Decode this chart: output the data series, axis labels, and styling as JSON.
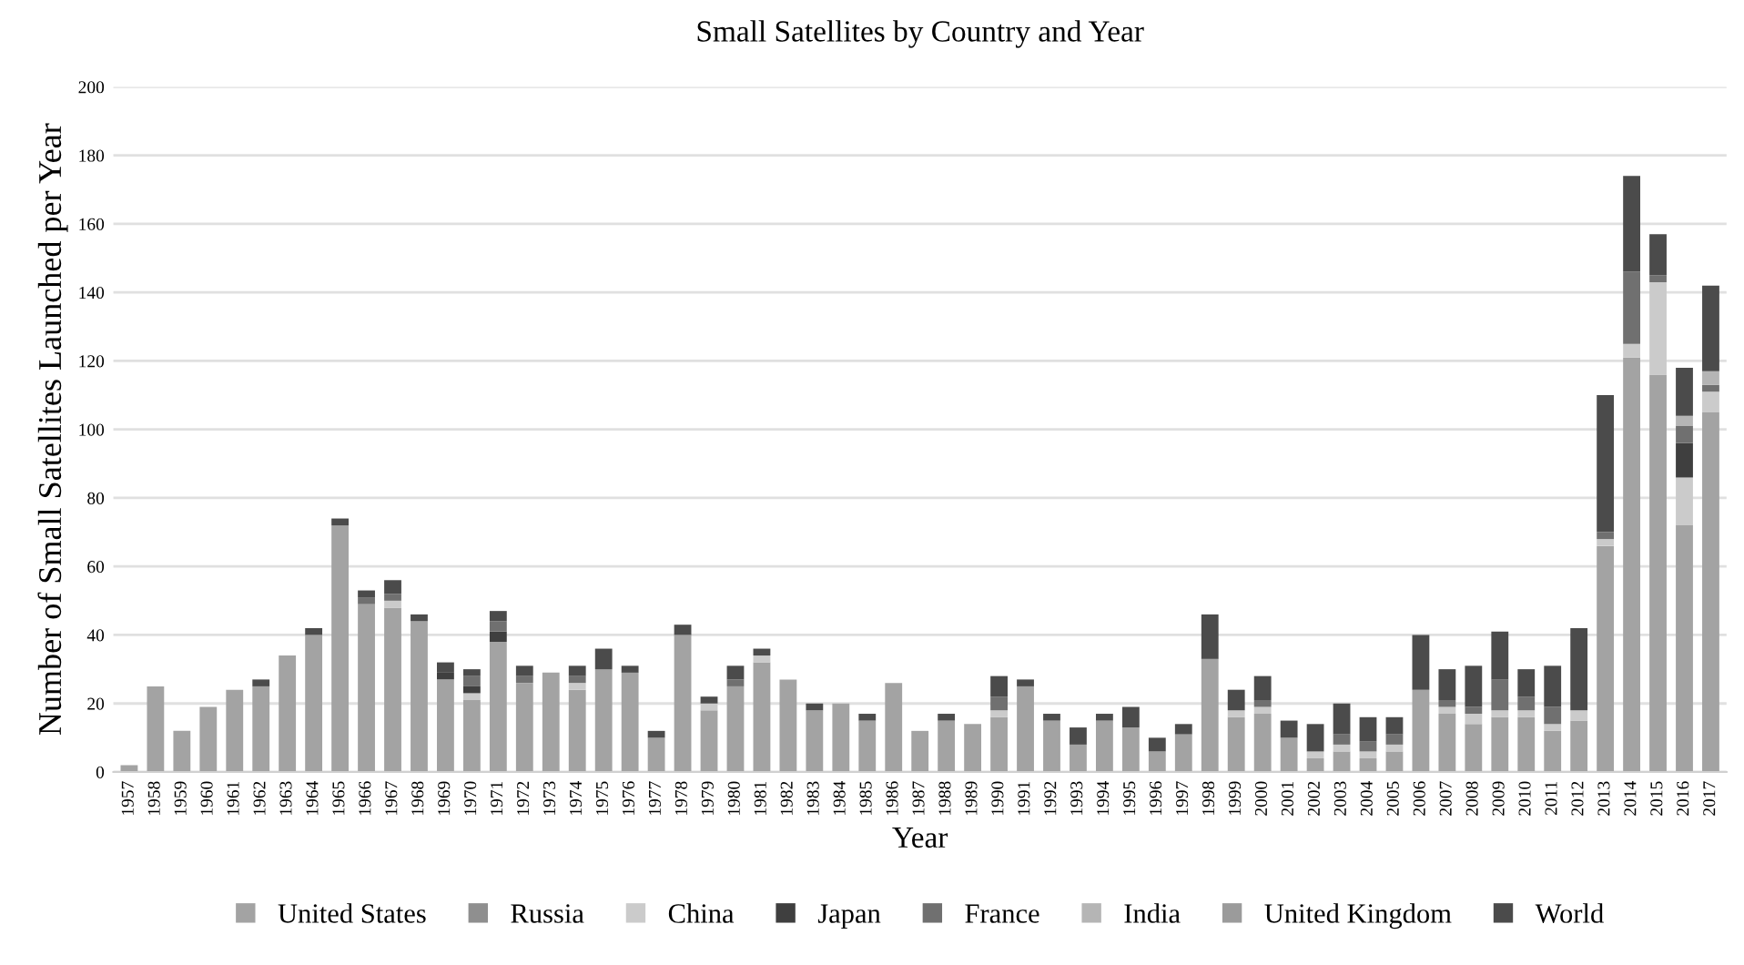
{
  "chart_data": {
    "type": "bar",
    "stacked": true,
    "title": "Small Satellites by Country and Year",
    "xlabel": "Year",
    "ylabel": "Number of Small Satellites Launched per Year",
    "categories": [
      "1957",
      "1958",
      "1959",
      "1960",
      "1961",
      "1962",
      "1963",
      "1964",
      "1965",
      "1966",
      "1967",
      "1968",
      "1969",
      "1970",
      "1971",
      "1972",
      "1973",
      "1974",
      "1975",
      "1976",
      "1977",
      "1978",
      "1979",
      "1980",
      "1981",
      "1982",
      "1983",
      "1984",
      "1985",
      "1986",
      "1987",
      "1988",
      "1989",
      "1990",
      "1991",
      "1992",
      "1993",
      "1994",
      "1995",
      "1996",
      "1997",
      "1998",
      "1999",
      "2000",
      "2001",
      "2002",
      "2003",
      "2004",
      "2005",
      "2006",
      "2007",
      "2008",
      "2009",
      "2010",
      "2011",
      "2012",
      "2013",
      "2014",
      "2015",
      "2016",
      "2017"
    ],
    "series": [
      {
        "name": "United States",
        "color": "#a3a3a3",
        "values": [
          2,
          25,
          12,
          19,
          24,
          25,
          34,
          40,
          72,
          49,
          48,
          44,
          27,
          21,
          38,
          26,
          29,
          24,
          30,
          29,
          10,
          40,
          18,
          25,
          32,
          27,
          18,
          20,
          15,
          26,
          12,
          15,
          14,
          16,
          25,
          15,
          8,
          15,
          13,
          6,
          11,
          33,
          16,
          17,
          10,
          4,
          6,
          4,
          6,
          24,
          17,
          14,
          16,
          16,
          12,
          15,
          66,
          121,
          116,
          72,
          105
        ]
      },
      {
        "name": "Russia",
        "color": "#8f8f8f",
        "values": [
          0,
          0,
          0,
          0,
          0,
          0,
          0,
          0,
          0,
          0,
          0,
          0,
          0,
          0,
          0,
          0,
          0,
          0,
          0,
          0,
          0,
          0,
          0,
          0,
          0,
          0,
          0,
          0,
          0,
          0,
          0,
          0,
          0,
          0,
          0,
          0,
          0,
          0,
          0,
          0,
          0,
          0,
          0,
          0,
          0,
          0,
          0,
          0,
          0,
          0,
          0,
          0,
          0,
          0,
          0,
          0,
          0,
          0,
          0,
          0,
          0
        ]
      },
      {
        "name": "China",
        "color": "#cbcbcb",
        "values": [
          0,
          0,
          0,
          0,
          0,
          0,
          0,
          0,
          0,
          0,
          2,
          0,
          0,
          2,
          0,
          0,
          0,
          2,
          0,
          0,
          0,
          0,
          2,
          0,
          2,
          0,
          0,
          0,
          0,
          0,
          0,
          0,
          0,
          2,
          0,
          0,
          0,
          0,
          0,
          0,
          0,
          0,
          2,
          2,
          0,
          2,
          2,
          2,
          2,
          0,
          2,
          3,
          2,
          2,
          2,
          3,
          2,
          4,
          27,
          14,
          6
        ]
      },
      {
        "name": "Japan",
        "color": "#3f3f3f",
        "values": [
          0,
          0,
          0,
          0,
          0,
          0,
          0,
          0,
          0,
          0,
          0,
          0,
          2,
          2,
          3,
          0,
          0,
          0,
          0,
          0,
          0,
          0,
          0,
          0,
          0,
          0,
          0,
          0,
          0,
          0,
          0,
          0,
          0,
          0,
          0,
          0,
          0,
          0,
          0,
          0,
          0,
          0,
          0,
          0,
          0,
          0,
          0,
          0,
          0,
          0,
          0,
          0,
          0,
          0,
          0,
          0,
          0,
          0,
          0,
          10,
          0
        ]
      },
      {
        "name": "France",
        "color": "#707070",
        "values": [
          0,
          0,
          0,
          0,
          0,
          0,
          0,
          0,
          0,
          2,
          2,
          0,
          0,
          3,
          3,
          2,
          0,
          2,
          0,
          0,
          0,
          0,
          0,
          2,
          0,
          0,
          0,
          0,
          0,
          0,
          0,
          0,
          0,
          4,
          0,
          0,
          0,
          0,
          0,
          0,
          0,
          0,
          0,
          2,
          0,
          0,
          3,
          3,
          3,
          0,
          2,
          2,
          9,
          4,
          5,
          0,
          2,
          21,
          2,
          5,
          2
        ]
      },
      {
        "name": "India",
        "color": "#b5b5b5",
        "values": [
          0,
          0,
          0,
          0,
          0,
          0,
          0,
          0,
          0,
          0,
          0,
          0,
          0,
          0,
          0,
          0,
          0,
          0,
          0,
          0,
          0,
          0,
          0,
          0,
          0,
          0,
          0,
          0,
          0,
          0,
          0,
          0,
          0,
          0,
          0,
          0,
          0,
          0,
          0,
          0,
          0,
          0,
          0,
          0,
          0,
          0,
          0,
          0,
          0,
          0,
          0,
          0,
          0,
          0,
          0,
          0,
          0,
          0,
          0,
          3,
          4
        ]
      },
      {
        "name": "United Kingdom",
        "color": "#9b9b9b",
        "values": [
          0,
          0,
          0,
          0,
          0,
          0,
          0,
          0,
          0,
          0,
          0,
          0,
          0,
          0,
          0,
          0,
          0,
          0,
          0,
          0,
          0,
          0,
          0,
          0,
          0,
          0,
          0,
          0,
          0,
          0,
          0,
          0,
          0,
          0,
          0,
          0,
          0,
          0,
          0,
          0,
          0,
          0,
          0,
          0,
          0,
          0,
          0,
          0,
          0,
          0,
          0,
          0,
          0,
          0,
          0,
          0,
          0,
          0,
          0,
          0,
          0
        ]
      },
      {
        "name": "World",
        "color": "#4b4b4b",
        "values": [
          0,
          0,
          0,
          0,
          0,
          2,
          0,
          2,
          2,
          2,
          4,
          2,
          3,
          2,
          3,
          3,
          0,
          3,
          6,
          2,
          2,
          3,
          2,
          4,
          2,
          0,
          2,
          0,
          2,
          0,
          0,
          2,
          0,
          6,
          2,
          2,
          5,
          2,
          6,
          4,
          3,
          13,
          6,
          7,
          5,
          8,
          9,
          7,
          5,
          16,
          9,
          12,
          14,
          8,
          12,
          24,
          40,
          28,
          12,
          14,
          25
        ]
      }
    ],
    "ylim": [
      0,
      200
    ],
    "yticks": [
      0,
      20,
      40,
      60,
      80,
      100,
      120,
      140,
      160,
      180,
      200
    ],
    "grid": "y",
    "legend": "bottom"
  }
}
